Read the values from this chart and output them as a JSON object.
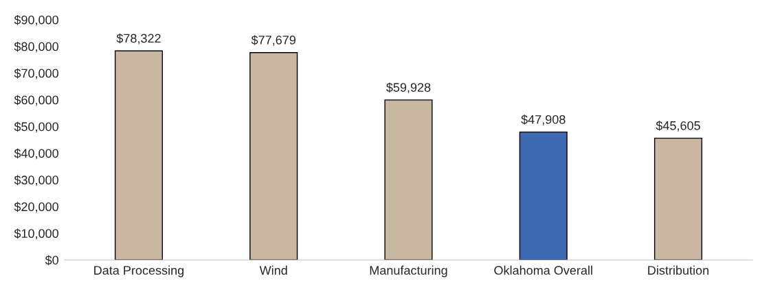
{
  "chart_data": {
    "type": "bar",
    "categories": [
      "Data Processing",
      "Wind",
      "Manufacturing",
      "Oklahoma Overall",
      "Distribution"
    ],
    "values": [
      78322,
      77679,
      59928,
      47908,
      45605
    ],
    "colors": [
      "#c8b8a1",
      "#c8b8a1",
      "#c8b8a1",
      "#3e69b3",
      "#c8b8a1"
    ],
    "value_labels": [
      "$78,322",
      "$77,679",
      "$59,928",
      "$47,908",
      "$45,605"
    ],
    "ylim": [
      0,
      90000
    ],
    "yticks": [
      {
        "value": 0,
        "label": "$0"
      },
      {
        "value": 10000,
        "label": "$10,000"
      },
      {
        "value": 20000,
        "label": "$20,000"
      },
      {
        "value": 30000,
        "label": "$30,000"
      },
      {
        "value": 40000,
        "label": "$40,000"
      },
      {
        "value": 50000,
        "label": "$50,000"
      },
      {
        "value": 60000,
        "label": "$60,000"
      },
      {
        "value": 70000,
        "label": "$70,000"
      },
      {
        "value": 80000,
        "label": "$80,000"
      },
      {
        "value": 90000,
        "label": "$90,000"
      }
    ],
    "grid": false,
    "legend": false
  }
}
